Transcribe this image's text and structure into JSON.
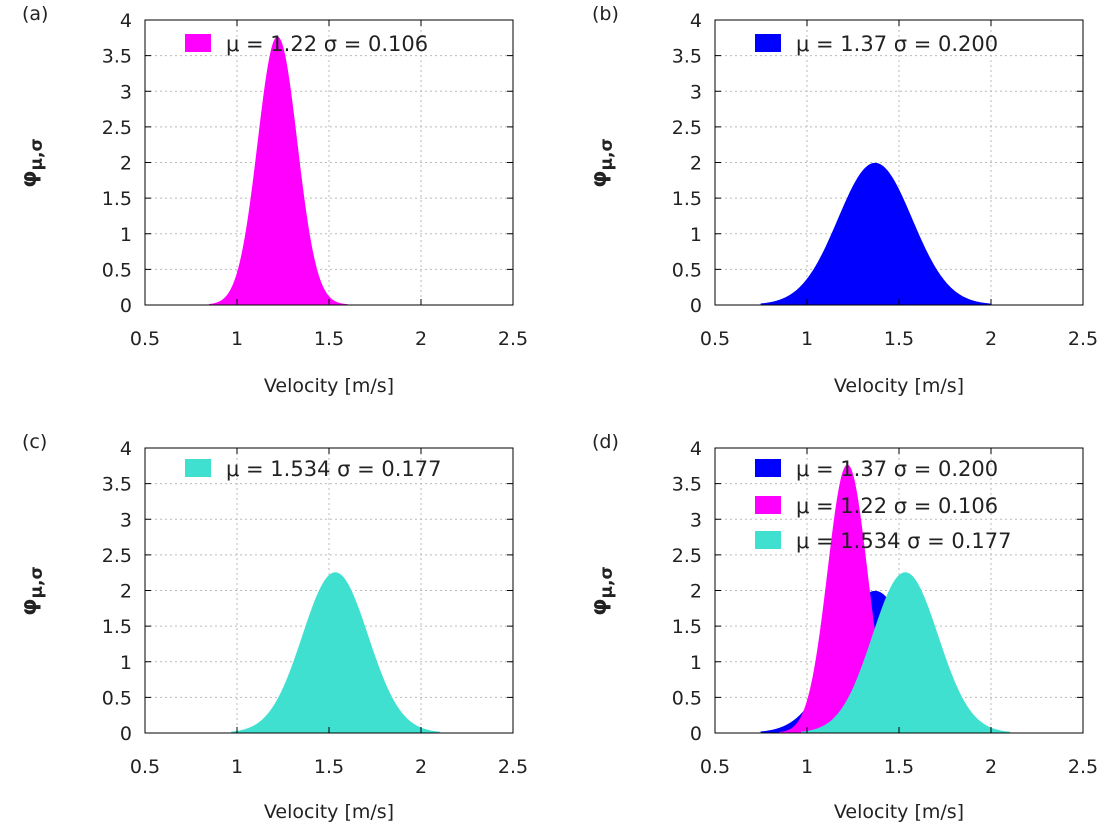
{
  "figure": {
    "xlabel": "Velocity [m/s]",
    "ylabel_main": "φ",
    "ylabel_sub": "μ,σ"
  },
  "chart_data": [
    {
      "type": "area",
      "panel_label": "(a)",
      "xlabel": "Velocity [m/s]",
      "ylabel": "φμ,σ",
      "xlim": [
        0.5,
        2.5
      ],
      "ylim": [
        0,
        4
      ],
      "xticks": [
        "0.5",
        "1",
        "1.5",
        "2",
        "2.5"
      ],
      "yticks": [
        "0",
        "0.5",
        "1",
        "1.5",
        "2",
        "2.5",
        "3",
        "3.5",
        "4"
      ],
      "grid": true,
      "legend_position": "top",
      "series": [
        {
          "name": "μ =  1.22  σ = 0.106",
          "color": "#ff00ff",
          "mu": 1.22,
          "sigma": 0.106,
          "x_range": [
            0.85,
            1.6
          ],
          "peak": 3.76
        }
      ]
    },
    {
      "type": "area",
      "panel_label": "(b)",
      "xlabel": "Velocity [m/s]",
      "ylabel": "φμ,σ",
      "xlim": [
        0.5,
        2.5
      ],
      "ylim": [
        0,
        4
      ],
      "xticks": [
        "0.5",
        "1",
        "1.5",
        "2",
        "2.5"
      ],
      "yticks": [
        "0",
        "0.5",
        "1",
        "1.5",
        "2",
        "2.5",
        "3",
        "3.5",
        "4"
      ],
      "grid": true,
      "legend_position": "top",
      "series": [
        {
          "name": "μ =  1.37  σ = 0.200",
          "color": "#0000ff",
          "mu": 1.37,
          "sigma": 0.2,
          "x_range": [
            0.75,
            2.0
          ],
          "peak": 1.99
        }
      ]
    },
    {
      "type": "area",
      "panel_label": "(c)",
      "xlabel": "Velocity [m/s]",
      "ylabel": "φμ,σ",
      "xlim": [
        0.5,
        2.5
      ],
      "ylim": [
        0,
        4
      ],
      "xticks": [
        "0.5",
        "1",
        "1.5",
        "2",
        "2.5"
      ],
      "yticks": [
        "0",
        "0.5",
        "1",
        "1.5",
        "2",
        "2.5",
        "3",
        "3.5",
        "4"
      ],
      "grid": true,
      "legend_position": "top",
      "series": [
        {
          "name": "μ =  1.534  σ = 0.177",
          "color": "#40e0d0",
          "mu": 1.534,
          "sigma": 0.177,
          "x_range": [
            0.97,
            2.1
          ],
          "peak": 2.25
        }
      ]
    },
    {
      "type": "area",
      "panel_label": "(d)",
      "xlabel": "Velocity [m/s]",
      "ylabel": "φμ,σ",
      "xlim": [
        0.5,
        2.5
      ],
      "ylim": [
        0,
        4
      ],
      "xticks": [
        "0.5",
        "1",
        "1.5",
        "2",
        "2.5"
      ],
      "yticks": [
        "0",
        "0.5",
        "1",
        "1.5",
        "2",
        "2.5",
        "3",
        "3.5",
        "4"
      ],
      "grid": true,
      "legend_position": "top",
      "series": [
        {
          "name": "μ =  1.37  σ = 0.200",
          "color": "#0000ff",
          "mu": 1.37,
          "sigma": 0.2,
          "x_range": [
            0.75,
            2.0
          ],
          "peak": 1.99
        },
        {
          "name": "μ =  1.22  σ = 0.106",
          "color": "#ff00ff",
          "mu": 1.22,
          "sigma": 0.106,
          "x_range": [
            0.85,
            1.6
          ],
          "peak": 3.76
        },
        {
          "name": "μ =  1.534  σ = 0.177",
          "color": "#40e0d0",
          "mu": 1.534,
          "sigma": 0.177,
          "x_range": [
            0.97,
            2.1
          ],
          "peak": 2.25
        }
      ]
    }
  ]
}
